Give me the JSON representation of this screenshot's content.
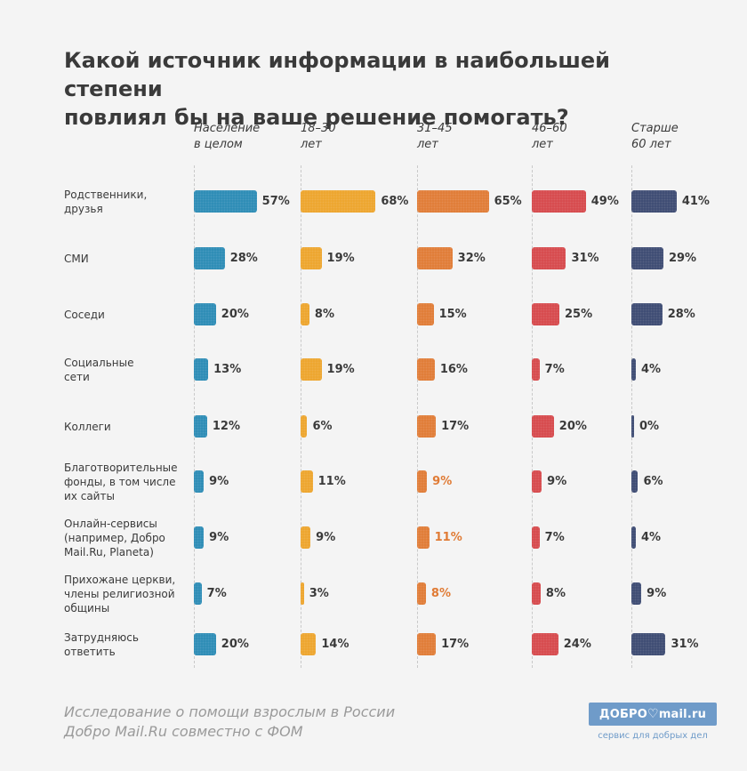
{
  "title_lines": [
    "Какой источник информации в наибольшей степени",
    "повлиял бы на ваше решение помогать?"
  ],
  "footer_lines": [
    "Исследование о помощи взрослым в России",
    "Добро Mail.Ru совместно с ФОМ"
  ],
  "logo": {
    "text_left": "ДОБРО",
    "text_right": "mail.ru",
    "tagline": "сервис для добрых дел",
    "color": "#6f9bc9"
  },
  "chart_data": {
    "type": "bar",
    "title": "Какой источник информации в наибольшей степени повлиял бы на ваше решение помогать?",
    "categories": [
      "Родственники, друзья",
      "СМИ",
      "Соседи",
      "Социальные сети",
      "Коллеги",
      "Благотворительные фонды, в том числе их сайты",
      "Онлайн-сервисы (например, Добро Mail.Ru, Planeta)",
      "Прихожане церкви, члены религиозной общины",
      "Затрудняюсь ответить"
    ],
    "category_lines": [
      [
        "Родственники,",
        "друзья"
      ],
      [
        "СМИ"
      ],
      [
        "Соседи"
      ],
      [
        "Социальные",
        "сети"
      ],
      [
        "Коллеги"
      ],
      [
        "Благотворительные",
        "фонды, в том числе",
        "их сайты"
      ],
      [
        "Онлайн-сервисы",
        "(например, Добро",
        "Mail.Ru, Planeta)"
      ],
      [
        "Прихожане церкви,",
        "члены религиозной",
        "общины"
      ],
      [
        "Затрудняюсь",
        "ответить"
      ]
    ],
    "unit": "%",
    "series": [
      {
        "name": "Население в целом",
        "name_lines": [
          "Население",
          "в целом"
        ],
        "color": "#2b8bb5",
        "values": [
          57,
          28,
          20,
          13,
          12,
          9,
          9,
          7,
          20
        ]
      },
      {
        "name": "18–30 лет",
        "name_lines": [
          "18–30",
          "лет"
        ],
        "color": "#eda42c",
        "values": [
          68,
          19,
          8,
          19,
          6,
          11,
          9,
          3,
          14
        ]
      },
      {
        "name": "31–45 лет",
        "name_lines": [
          "31–45",
          "лет"
        ],
        "color": "#e07b35",
        "values": [
          65,
          32,
          15,
          16,
          17,
          9,
          11,
          8,
          17
        ]
      },
      {
        "name": "46–60 лет",
        "name_lines": [
          "46–60",
          "лет"
        ],
        "color": "#d6484b",
        "values": [
          49,
          31,
          25,
          7,
          20,
          9,
          7,
          8,
          24
        ]
      },
      {
        "name": "Старше 60 лет",
        "name_lines": [
          "Старше",
          "60 лет"
        ],
        "color": "#3c4a72",
        "values": [
          41,
          29,
          28,
          4,
          0,
          6,
          4,
          9,
          31
        ]
      }
    ],
    "highlighted_labels": [
      {
        "series": 2,
        "category": 5,
        "color": "#e07b35"
      },
      {
        "series": 2,
        "category": 6,
        "color": "#e07b35"
      },
      {
        "series": 2,
        "category": 7,
        "color": "#e07b35"
      }
    ]
  }
}
